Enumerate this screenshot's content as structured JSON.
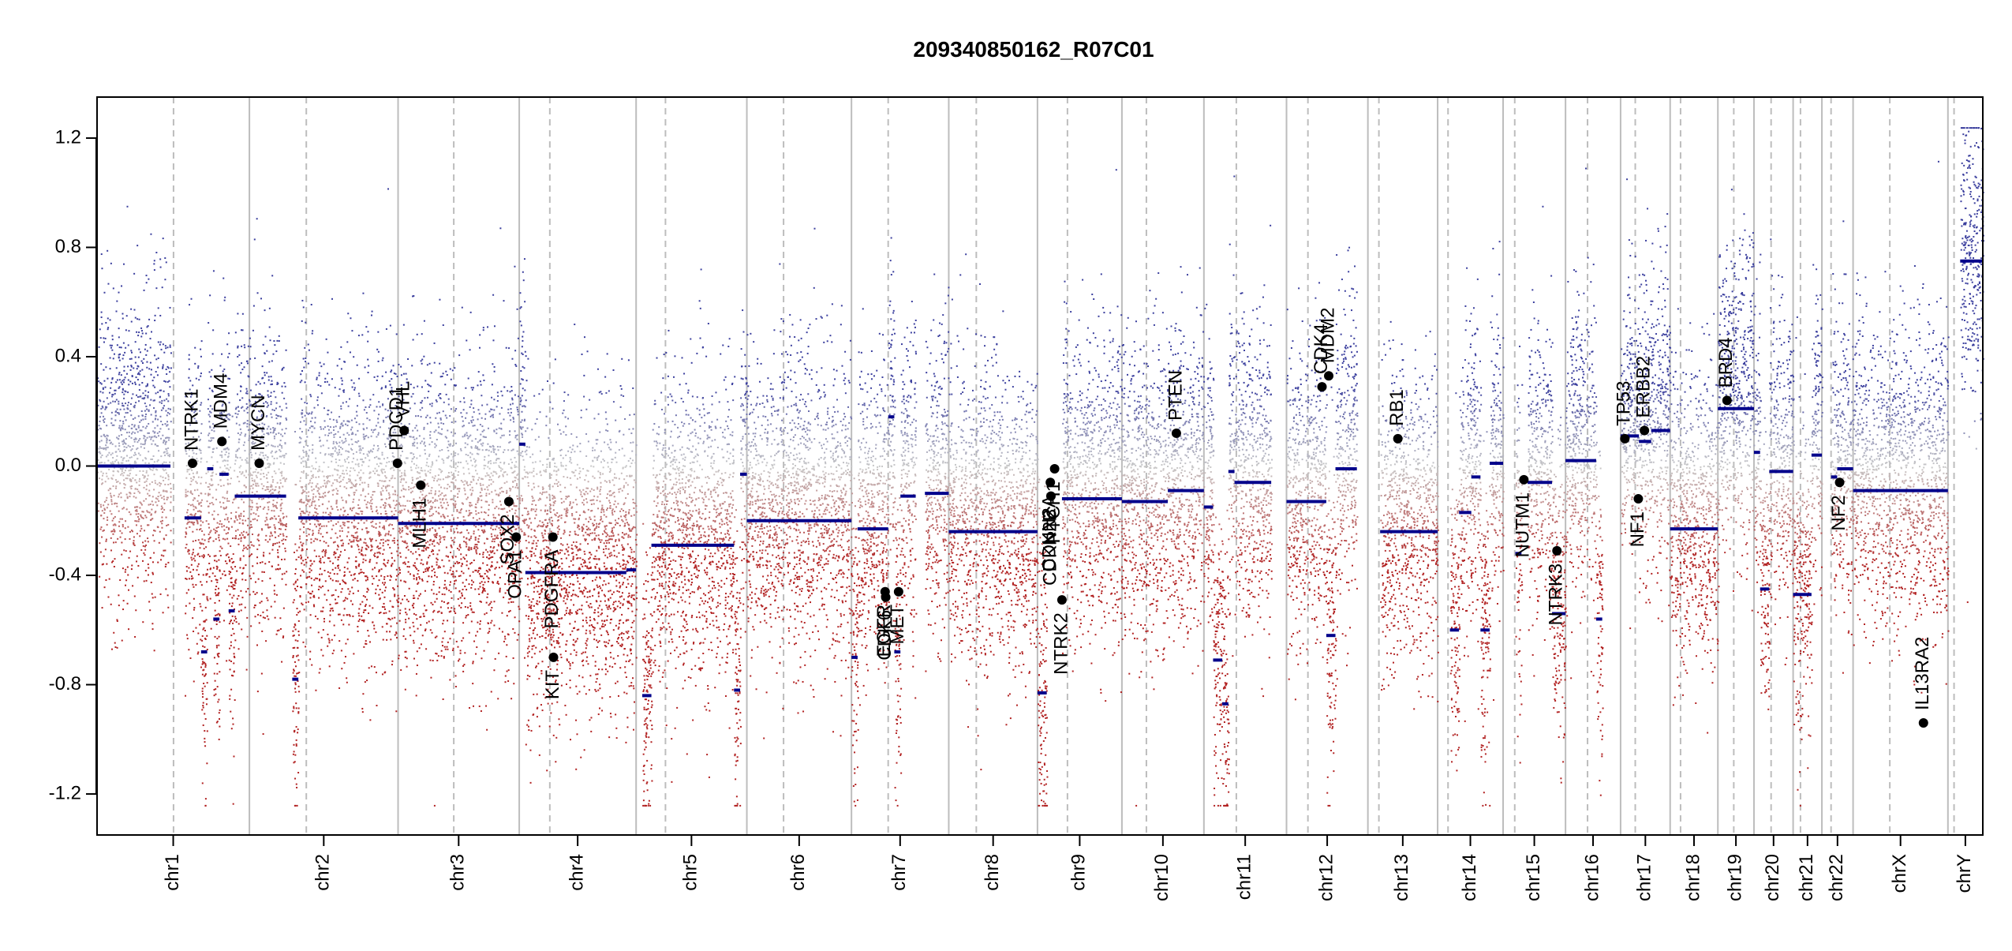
{
  "chart_data": {
    "type": "scatter",
    "title": "209340850162_R07C01",
    "xlabel": "",
    "ylabel": "",
    "ylim": [
      -1.35,
      1.35
    ],
    "y_ticks": [
      -1.2,
      -0.8,
      -0.4,
      0.0,
      0.4,
      0.8,
      1.2
    ],
    "y_tick_labels": [
      "-1.2",
      "-0.8",
      "-0.4",
      "0.0",
      "0.4",
      "0.8",
      "1.2"
    ],
    "grid": false,
    "legend": "none",
    "colors": {
      "gain": "#3b3f9e",
      "loss": "#b22222",
      "neutral": "#c8c8c8",
      "segment": "#00008b",
      "gene": "#000000",
      "axis": "#000000",
      "boundary": "#bdbdbd",
      "centromere": "#bdbdbd"
    },
    "chromosomes": [
      {
        "name": "chr1",
        "len": 249,
        "cen": 125
      },
      {
        "name": "chr2",
        "len": 243,
        "cen": 93
      },
      {
        "name": "chr3",
        "len": 198,
        "cen": 91
      },
      {
        "name": "chr4",
        "len": 191,
        "cen": 50
      },
      {
        "name": "chr5",
        "len": 181,
        "cen": 48
      },
      {
        "name": "chr6",
        "len": 171,
        "cen": 60
      },
      {
        "name": "chr7",
        "len": 159,
        "cen": 60
      },
      {
        "name": "chr8",
        "len": 145,
        "cen": 45
      },
      {
        "name": "chr9",
        "len": 138,
        "cen": 49
      },
      {
        "name": "chr10",
        "len": 134,
        "cen": 40
      },
      {
        "name": "chr11",
        "len": 135,
        "cen": 53
      },
      {
        "name": "chr12",
        "len": 133,
        "cen": 35
      },
      {
        "name": "chr13",
        "len": 114,
        "cen": 18
      },
      {
        "name": "chr14",
        "len": 107,
        "cen": 17
      },
      {
        "name": "chr15",
        "len": 102,
        "cen": 19
      },
      {
        "name": "chr16",
        "len": 90,
        "cen": 36
      },
      {
        "name": "chr17",
        "len": 81,
        "cen": 24
      },
      {
        "name": "chr18",
        "len": 78,
        "cen": 17
      },
      {
        "name": "chr19",
        "len": 59,
        "cen": 26
      },
      {
        "name": "chr20",
        "len": 64,
        "cen": 28
      },
      {
        "name": "chr21",
        "len": 47,
        "cen": 12
      },
      {
        "name": "chr22",
        "len": 51,
        "cen": 15
      },
      {
        "name": "chrX",
        "len": 155,
        "cen": 60
      },
      {
        "name": "chrY",
        "len": 57,
        "cen": 10
      }
    ],
    "segments": [
      {
        "chr": "chr1",
        "start": 0,
        "end": 120,
        "value": 0.0
      },
      {
        "chr": "chr1",
        "start": 143,
        "end": 170,
        "value": -0.19
      },
      {
        "chr": "chr1",
        "start": 170,
        "end": 180,
        "value": -0.68
      },
      {
        "chr": "chr1",
        "start": 180,
        "end": 190,
        "value": -0.01
      },
      {
        "chr": "chr1",
        "start": 190,
        "end": 200,
        "value": -0.56
      },
      {
        "chr": "chr1",
        "start": 200,
        "end": 215,
        "value": -0.03
      },
      {
        "chr": "chr1",
        "start": 215,
        "end": 225,
        "value": -0.53
      },
      {
        "chr": "chr1",
        "start": 225,
        "end": 249,
        "value": -0.11
      },
      {
        "chr": "chr2",
        "start": 0,
        "end": 60,
        "value": -0.11
      },
      {
        "chr": "chr2",
        "start": 70,
        "end": 80,
        "value": -0.78
      },
      {
        "chr": "chr2",
        "start": 80,
        "end": 243,
        "value": -0.19
      },
      {
        "chr": "chr3",
        "start": 0,
        "end": 198,
        "value": -0.21
      },
      {
        "chr": "chr4",
        "start": 0,
        "end": 10,
        "value": 0.08
      },
      {
        "chr": "chr4",
        "start": 10,
        "end": 175,
        "value": -0.39
      },
      {
        "chr": "chr4",
        "start": 175,
        "end": 191,
        "value": -0.38
      },
      {
        "chr": "chr5",
        "start": 10,
        "end": 25,
        "value": -0.84
      },
      {
        "chr": "chr5",
        "start": 25,
        "end": 160,
        "value": -0.29
      },
      {
        "chr": "chr5",
        "start": 160,
        "end": 170,
        "value": -0.82
      },
      {
        "chr": "chr5",
        "start": 170,
        "end": 181,
        "value": -0.03
      },
      {
        "chr": "chr6",
        "start": 0,
        "end": 171,
        "value": -0.2
      },
      {
        "chr": "chr7",
        "start": 0,
        "end": 10,
        "value": -0.7
      },
      {
        "chr": "chr7",
        "start": 10,
        "end": 60,
        "value": -0.23
      },
      {
        "chr": "chr7",
        "start": 60,
        "end": 70,
        "value": 0.18
      },
      {
        "chr": "chr7",
        "start": 70,
        "end": 80,
        "value": -0.68
      },
      {
        "chr": "chr7",
        "start": 80,
        "end": 105,
        "value": -0.11
      },
      {
        "chr": "chr7",
        "start": 120,
        "end": 159,
        "value": -0.1
      },
      {
        "chr": "chr8",
        "start": 0,
        "end": 145,
        "value": -0.24
      },
      {
        "chr": "chr9",
        "start": 0,
        "end": 15,
        "value": -0.83
      },
      {
        "chr": "chr9",
        "start": 40,
        "end": 138,
        "value": -0.12
      },
      {
        "chr": "chr10",
        "start": 0,
        "end": 75,
        "value": -0.13
      },
      {
        "chr": "chr10",
        "start": 75,
        "end": 134,
        "value": -0.09
      },
      {
        "chr": "chr11",
        "start": 0,
        "end": 15,
        "value": -0.15
      },
      {
        "chr": "chr11",
        "start": 15,
        "end": 30,
        "value": -0.71
      },
      {
        "chr": "chr11",
        "start": 30,
        "end": 40,
        "value": -0.87
      },
      {
        "chr": "chr11",
        "start": 40,
        "end": 50,
        "value": -0.02
      },
      {
        "chr": "chr11",
        "start": 50,
        "end": 110,
        "value": -0.06
      },
      {
        "chr": "chr12",
        "start": 0,
        "end": 65,
        "value": -0.13
      },
      {
        "chr": "chr12",
        "start": 65,
        "end": 80,
        "value": -0.62
      },
      {
        "chr": "chr12",
        "start": 80,
        "end": 115,
        "value": -0.01
      },
      {
        "chr": "chr13",
        "start": 20,
        "end": 114,
        "value": -0.24
      },
      {
        "chr": "chr14",
        "start": 20,
        "end": 35,
        "value": -0.6
      },
      {
        "chr": "chr14",
        "start": 35,
        "end": 55,
        "value": -0.17
      },
      {
        "chr": "chr14",
        "start": 55,
        "end": 70,
        "value": -0.04
      },
      {
        "chr": "chr14",
        "start": 70,
        "end": 85,
        "value": -0.6
      },
      {
        "chr": "chr14",
        "start": 85,
        "end": 107,
        "value": 0.01
      },
      {
        "chr": "chr15",
        "start": 20,
        "end": 30,
        "value": -0.32
      },
      {
        "chr": "chr15",
        "start": 40,
        "end": 80,
        "value": -0.06
      },
      {
        "chr": "chr15",
        "start": 80,
        "end": 102,
        "value": -0.54
      },
      {
        "chr": "chr16",
        "start": 0,
        "end": 50,
        "value": 0.02
      },
      {
        "chr": "chr16",
        "start": 50,
        "end": 60,
        "value": -0.56
      },
      {
        "chr": "chr17",
        "start": 0,
        "end": 30,
        "value": 0.11
      },
      {
        "chr": "chr17",
        "start": 30,
        "end": 50,
        "value": 0.09
      },
      {
        "chr": "chr17",
        "start": 50,
        "end": 81,
        "value": 0.13
      },
      {
        "chr": "chr18",
        "start": 0,
        "end": 78,
        "value": -0.23
      },
      {
        "chr": "chr19",
        "start": 0,
        "end": 59,
        "value": 0.21
      },
      {
        "chr": "chr20",
        "start": 0,
        "end": 10,
        "value": 0.05
      },
      {
        "chr": "chr20",
        "start": 10,
        "end": 25,
        "value": -0.45
      },
      {
        "chr": "chr20",
        "start": 25,
        "end": 64,
        "value": -0.02
      },
      {
        "chr": "chr21",
        "start": 0,
        "end": 30,
        "value": -0.47
      },
      {
        "chr": "chr21",
        "start": 30,
        "end": 47,
        "value": 0.04
      },
      {
        "chr": "chr22",
        "start": 15,
        "end": 25,
        "value": -0.04
      },
      {
        "chr": "chr22",
        "start": 25,
        "end": 51,
        "value": -0.01
      },
      {
        "chr": "chrX",
        "start": 0,
        "end": 155,
        "value": -0.09
      },
      {
        "chr": "chrY",
        "start": 20,
        "end": 57,
        "value": 0.75
      }
    ],
    "genes": [
      {
        "name": "NTRK1",
        "chr": "chr1",
        "pos": 156,
        "value": 0.01,
        "label_side": "above"
      },
      {
        "name": "MDM4",
        "chr": "chr1",
        "pos": 204,
        "value": 0.09,
        "label_side": "above"
      },
      {
        "name": "MYCN",
        "chr": "chr2",
        "pos": 16,
        "value": 0.01,
        "label_side": "above"
      },
      {
        "name": "PDGFRA",
        "chr": "chr4",
        "pos": 55,
        "value": -0.26,
        "label_side": "below"
      },
      {
        "name": "KIT",
        "chr": "chr4",
        "pos": 56,
        "value": -0.7,
        "label_side": "below"
      },
      {
        "name": "PDCD1",
        "chr": "chr2",
        "pos": 242,
        "value": 0.01,
        "label_side": "above"
      },
      {
        "name": "VHL",
        "chr": "chr3",
        "pos": 10,
        "value": 0.13,
        "label_side": "above"
      },
      {
        "name": "MLH1",
        "chr": "chr3",
        "pos": 37,
        "value": -0.07,
        "label_side": "below"
      },
      {
        "name": "SOX2",
        "chr": "chr3",
        "pos": 181,
        "value": -0.13,
        "label_side": "below"
      },
      {
        "name": "OPA1",
        "chr": "chr3",
        "pos": 193,
        "value": -0.26,
        "label_side": "below"
      },
      {
        "name": "EGFR",
        "chr": "chr7",
        "pos": 55,
        "value": -0.46,
        "label_side": "below"
      },
      {
        "name": "CDK6",
        "chr": "chr7",
        "pos": 56,
        "value": -0.48,
        "label_side": "below"
      },
      {
        "name": "MET",
        "chr": "chr7",
        "pos": 77,
        "value": -0.46,
        "label_side": "below"
      },
      {
        "name": "CDKN2A",
        "chr": "chr9",
        "pos": 21,
        "value": -0.06,
        "label_side": "below"
      },
      {
        "name": "CDKN2B",
        "chr": "chr9",
        "pos": 22,
        "value": -0.11,
        "label_side": "below"
      },
      {
        "name": "PTCH1",
        "chr": "chr9",
        "pos": 28,
        "value": -0.01,
        "label_side": "below"
      },
      {
        "name": "NTRK2",
        "chr": "chr9",
        "pos": 40,
        "value": -0.49,
        "label_side": "below"
      },
      {
        "name": "PTEN",
        "chr": "chr10",
        "pos": 89,
        "value": 0.12,
        "label_side": "above"
      },
      {
        "name": "CDK4",
        "chr": "chr12",
        "pos": 58,
        "value": 0.29,
        "label_side": "above"
      },
      {
        "name": "MDM2",
        "chr": "chr12",
        "pos": 69,
        "value": 0.33,
        "label_side": "above"
      },
      {
        "name": "RB1",
        "chr": "chr13",
        "pos": 49,
        "value": 0.1,
        "label_side": "above"
      },
      {
        "name": "NUTM1",
        "chr": "chr15",
        "pos": 34,
        "value": -0.05,
        "label_side": "below"
      },
      {
        "name": "NTRK3",
        "chr": "chr15",
        "pos": 88,
        "value": -0.31,
        "label_side": "below"
      },
      {
        "name": "TP53",
        "chr": "chr17",
        "pos": 7,
        "value": 0.1,
        "label_side": "above"
      },
      {
        "name": "NF1",
        "chr": "chr17",
        "pos": 29,
        "value": -0.12,
        "label_side": "below"
      },
      {
        "name": "ERBB2",
        "chr": "chr17",
        "pos": 39,
        "value": 0.13,
        "label_side": "above"
      },
      {
        "name": "BRD4",
        "chr": "chr19",
        "pos": 15,
        "value": 0.24,
        "label_side": "above"
      },
      {
        "name": "NF2",
        "chr": "chr22",
        "pos": 29,
        "value": -0.06,
        "label_side": "below"
      },
      {
        "name": "IL13RA2",
        "chr": "chrX",
        "pos": 115,
        "value": -0.94,
        "label_side": "above"
      }
    ]
  }
}
